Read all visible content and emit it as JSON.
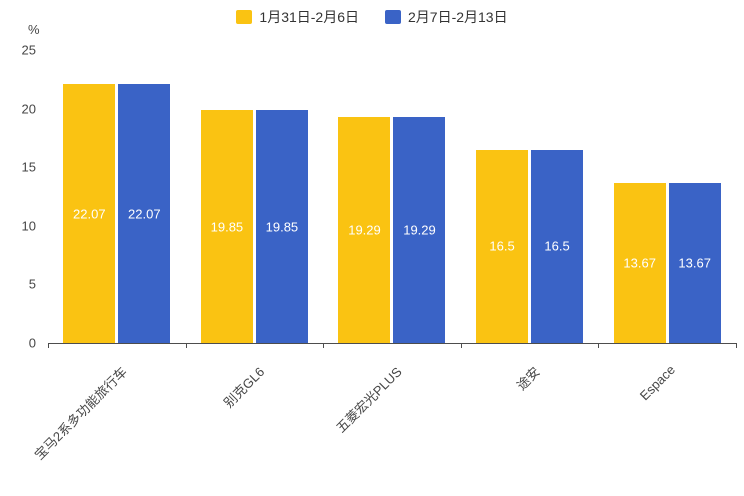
{
  "chart_data": {
    "type": "bar",
    "title": "",
    "categories": [
      "宝马2系多功能旅行车",
      "别克GL6",
      "五菱宏光PLUS",
      "途安",
      "Espace"
    ],
    "series": [
      {
        "name": "1月31日-2月6日",
        "color": "#FAC312",
        "values": [
          22.07,
          19.85,
          19.29,
          16.5,
          13.67
        ]
      },
      {
        "name": "2月7日-2月13日",
        "color": "#3A63C6",
        "values": [
          22.07,
          19.85,
          19.29,
          16.5,
          13.67
        ]
      }
    ],
    "xlabel": "",
    "ylabel": "%",
    "ylim": [
      0,
      25
    ],
    "yticks": [
      0,
      5,
      10,
      15,
      20,
      25
    ],
    "grid": false,
    "legend_position": "top",
    "value_labels": "inside-center, white"
  }
}
